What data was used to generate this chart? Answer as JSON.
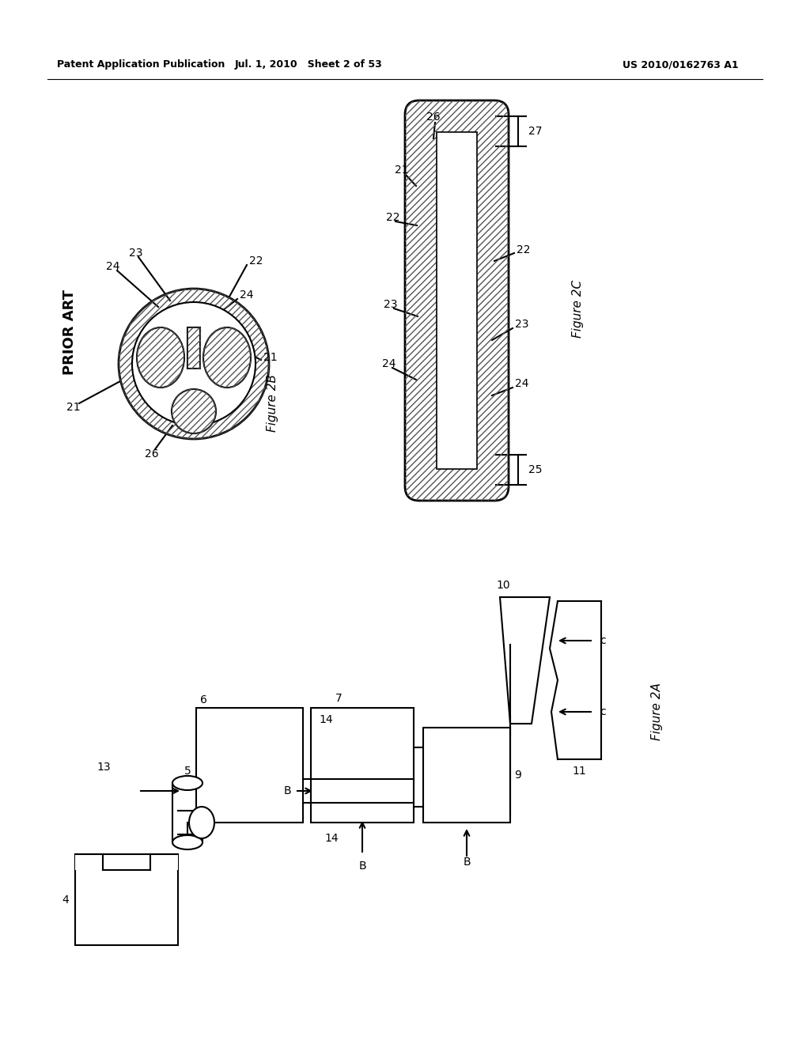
{
  "header_left": "Patent Application Publication",
  "header_mid": "Jul. 1, 2010   Sheet 2 of 53",
  "header_right": "US 2010/0162763 A1",
  "bg_color": "#ffffff",
  "line_color": "#000000",
  "fig_label_2b": "Figure 2B",
  "fig_label_2c": "Figure 2C",
  "fig_label_2a": "Figure 2A",
  "prior_art_label": "PRIOR ART"
}
